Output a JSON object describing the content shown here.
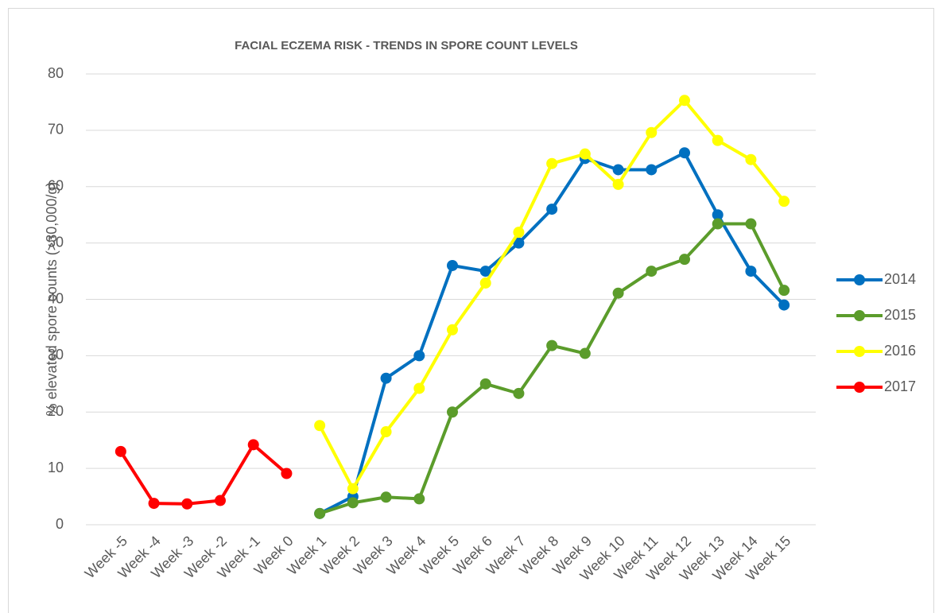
{
  "chart_data": {
    "type": "line",
    "title": "FACIAL ECZEMA RISK - TRENDS IN SPORE COUNT LEVELS",
    "y_label": "% elevated spore counts (>30,000/g)",
    "categories": [
      "Week -5",
      "Week -4",
      "Week -3",
      "Week -2",
      "Week -1",
      "Week 0",
      "Week 1",
      "Week 2",
      "Week 3",
      "Week 4",
      "Week 5",
      "Week 6",
      "Week 7",
      "Week 8",
      "Week 9",
      "Week 10",
      "Week 11",
      "Week 12",
      "Week 13",
      "Week 14",
      "Week 15"
    ],
    "series": [
      {
        "name": "2014",
        "color": "#0070c0",
        "values": [
          null,
          null,
          null,
          null,
          null,
          null,
          2,
          5,
          26,
          30,
          46,
          45,
          50,
          56,
          65,
          63,
          63,
          66,
          55,
          45,
          39
        ]
      },
      {
        "name": "2015",
        "color": "#5b9c2b",
        "values": [
          null,
          null,
          null,
          null,
          null,
          null,
          2,
          3.9,
          4.9,
          4.6,
          20,
          25,
          23.3,
          31.8,
          30.4,
          41.1,
          45,
          47.1,
          53.4,
          53.4,
          41.6
        ]
      },
      {
        "name": "2016",
        "color": "#ffff00",
        "values": [
          null,
          null,
          null,
          null,
          null,
          null,
          17.6,
          6.4,
          16.5,
          24.2,
          34.6,
          42.9,
          51.9,
          64.1,
          65.8,
          60.4,
          69.6,
          75.3,
          68.2,
          64.8,
          57.4
        ]
      },
      {
        "name": "2017",
        "color": "#ff0000",
        "values": [
          13,
          3.8,
          3.7,
          4.3,
          14.2,
          9.1,
          null,
          null,
          null,
          null,
          null,
          null,
          null,
          null,
          null,
          null,
          null,
          null,
          null,
          null,
          null
        ]
      }
    ],
    "ylim": [
      0,
      80
    ],
    "yticks": [
      0,
      10,
      20,
      30,
      40,
      50,
      60,
      70,
      80
    ],
    "grid": true,
    "legend": "right"
  }
}
